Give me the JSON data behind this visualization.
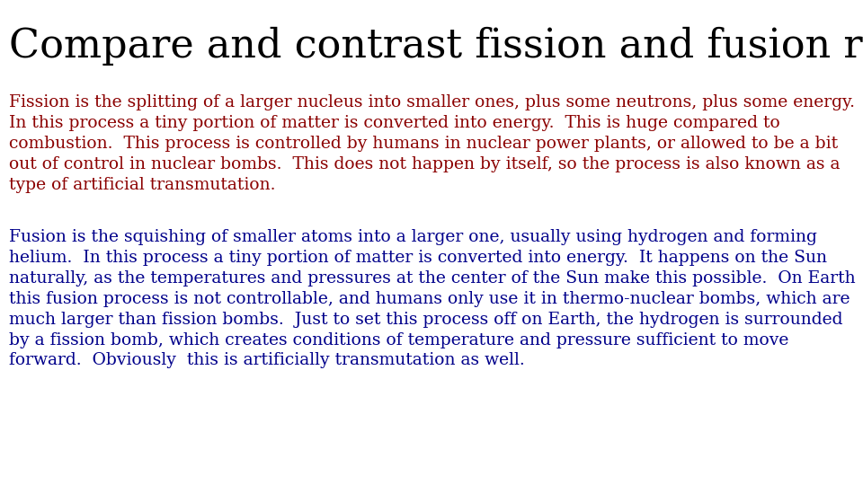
{
  "title": "Compare and contrast fission and fusion reactions.",
  "title_color": "#000000",
  "title_fontsize": 32,
  "title_font": "serif",
  "background_color": "#ffffff",
  "fission_text": "Fission is the splitting of a larger nucleus into smaller ones, plus some neutrons, plus some energy.  In this process a tiny portion of matter is converted into energy.  This is huge compared to combustion.  This process is controlled by humans in nuclear power plants, or allowed to be a bit out of control in nuclear bombs.  This does not happen by itself, so the process is also known as a type of artificial transmutation.",
  "fission_color": "#8B0000",
  "fusion_text": "Fusion is the squishing of smaller atoms into a larger one, usually using hydrogen and forming helium.  In this process a tiny portion of matter is converted into energy.  It happens on the Sun naturally, as the temperatures and pressures at the center of the Sun make this possible.  On Earth this fusion process is not controllable, and humans only use it in thermo-nuclear bombs, which are much larger than fission bombs.  Just to set this process off on Earth, the hydrogen is surrounded by a fission bomb, which creates conditions of temperature and pressure sufficient to move forward.  Obviously  this is artificially transmutation as well.",
  "fusion_color": "#00008B",
  "body_fontsize": 13.5,
  "body_font": "serif",
  "fission_wrapped": "Fission is the splitting of a larger nucleus into smaller ones, plus some neutrons, plus some energy.\nIn this process a tiny portion of matter is converted into energy.  This is huge compared to\ncombustion.  This process is controlled by humans in nuclear power plants, or allowed to be a bit\nout of control in nuclear bombs.  This does not happen by itself, so the process is also known as a\ntype of artificial transmutation.",
  "fusion_wrapped": "Fusion is the squishing of smaller atoms into a larger one, usually using hydrogen and forming\nhelium.  In this process a tiny portion of matter is converted into energy.  It happens on the Sun\nnaturally, as the temperatures and pressures at the center of the Sun make this possible.  On Earth\nthis fusion process is not controllable, and humans only use it in thermo-nuclear bombs, which are\nmuch larger than fission bombs.  Just to set this process off on Earth, the hydrogen is surrounded\nby a fission bomb, which creates conditions of temperature and pressure sufficient to move\nforward.  Obviously  this is artificially transmutation as well."
}
